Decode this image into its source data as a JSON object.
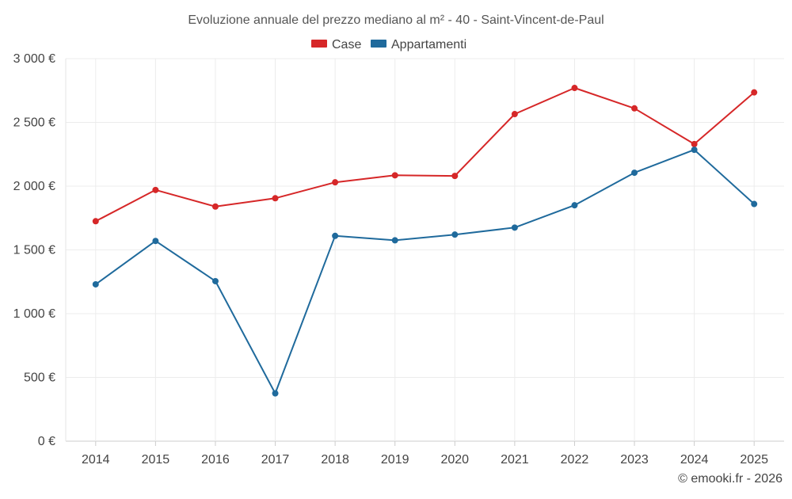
{
  "chart_data": {
    "type": "line",
    "title": "Evoluzione annuale del prezzo mediano al m² - 40 - Saint-Vincent-de-Paul",
    "categories": [
      "2014",
      "2015",
      "2016",
      "2017",
      "2018",
      "2019",
      "2020",
      "2021",
      "2022",
      "2023",
      "2024",
      "2025"
    ],
    "series": [
      {
        "name": "Case",
        "color": "#d62728",
        "values": [
          1725,
          1970,
          1840,
          1905,
          2030,
          2085,
          2080,
          2565,
          2770,
          2610,
          2330,
          2735
        ]
      },
      {
        "name": "Appartamenti",
        "color": "#1f6a9c",
        "values": [
          1230,
          1570,
          1255,
          375,
          1610,
          1575,
          1620,
          1675,
          1850,
          2105,
          2285,
          1860
        ]
      }
    ],
    "ylim": [
      0,
      3000
    ],
    "yticks": [
      0,
      500,
      1000,
      1500,
      2000,
      2500,
      3000
    ],
    "ytick_labels": [
      "0 €",
      "500 €",
      "1 000 €",
      "1 500 €",
      "2 000 €",
      "2 500 €",
      "3 000 €"
    ],
    "xlabel": "",
    "ylabel": "",
    "legend_position": "top-center",
    "grid": true
  },
  "footer": {
    "credit": "© emooki.fr - 2026"
  }
}
